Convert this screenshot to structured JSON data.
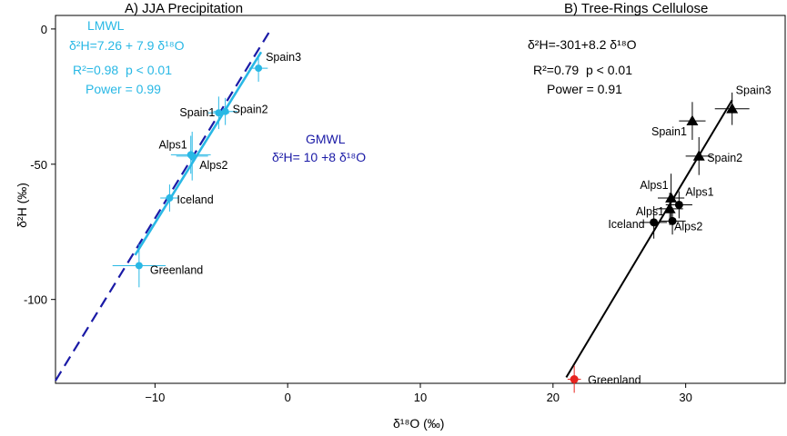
{
  "colors": {
    "lmwl": "#29b8e5",
    "gmwl": "#1a1aa6",
    "tree": "#000000",
    "greenland_tree": "#e8231e"
  },
  "chart_data": {
    "type": "scatter",
    "xlabel": "δ¹⁸O (‰)",
    "ylabel": "δ²H (‰)",
    "xlim": [
      -17.5,
      37.5
    ],
    "ylim": [
      -131,
      5
    ],
    "x_ticks": [
      -10,
      0,
      10,
      20,
      30
    ],
    "y_ticks": [
      0,
      -50,
      -100
    ],
    "x_tick_labels": [
      "−10",
      "0",
      "10",
      "20",
      "30"
    ],
    "y_tick_labels": [
      "0",
      "-50",
      "-100"
    ],
    "panels": [
      {
        "title": "A) JJA Precipitation",
        "lines": [
          {
            "name": "GMWL",
            "equation": "δ²H= 10 +8 δ¹⁸O",
            "intercept": 10,
            "slope": 8,
            "x_range": [
              -17.5,
              -1.3
            ],
            "style": "dashed"
          },
          {
            "name": "LMWL",
            "equation": "δ²H=7.26 + 7.9 δ¹⁸O",
            "intercept": 7.26,
            "slope": 7.9,
            "x_range": [
              -11.5,
              -2.0
            ],
            "style": "solid"
          }
        ],
        "stats": [
          "R²=0.98",
          "p < 0.01",
          "Power = 0.99"
        ],
        "points": [
          {
            "label": "Spain3",
            "x": -2.2,
            "y": -14.5,
            "xerr": 0.7,
            "yerr": 5
          },
          {
            "label": "Spain1",
            "x": -5.2,
            "y": -31,
            "xerr": 0.8,
            "yerr": 6
          },
          {
            "label": "Spain2",
            "x": -4.7,
            "y": -30.5,
            "xerr": 0.9,
            "yerr": 5
          },
          {
            "label": "Alps1",
            "x": -7.3,
            "y": -46.5,
            "xerr": 1.5,
            "yerr": 7
          },
          {
            "label": "Alps2",
            "x": -7.2,
            "y": -47,
            "xerr": 1.2,
            "yerr": 9
          },
          {
            "label": "Iceland",
            "x": -8.9,
            "y": -62.5,
            "xerr": 0.7,
            "yerr": 5
          },
          {
            "label": "Greenland",
            "x": -11.2,
            "y": -87.5,
            "xerr": 2.0,
            "yerr": 8
          }
        ]
      },
      {
        "title": "B) Tree-Rings Cellulose",
        "lines": [
          {
            "name": "Tree-ring regression",
            "equation": "δ²H=-301+8.2 δ¹⁸O",
            "intercept": -301,
            "slope": 8.2,
            "x_range": [
              21.0,
              33.5
            ],
            "style": "solid"
          }
        ],
        "stats": [
          "R²=0.79",
          "p < 0.01",
          "Power = 0.91"
        ],
        "points": [
          {
            "label": "Spain3",
            "x": 33.5,
            "y": -29.5,
            "xerr": 1.3,
            "yerr": 6,
            "marker": "triangle"
          },
          {
            "label": "Spain1",
            "x": 30.5,
            "y": -34,
            "xerr": 1.0,
            "yerr": 7,
            "marker": "triangle"
          },
          {
            "label": "Spain2",
            "x": 31.0,
            "y": -47,
            "xerr": 1.0,
            "yerr": 7,
            "marker": "triangle"
          },
          {
            "label": "Alps1",
            "x": 28.9,
            "y": -62.5,
            "xerr": 1.0,
            "yerr": 9,
            "marker": "triangle"
          },
          {
            "label": "Alps1",
            "x": 28.8,
            "y": -66.5,
            "xerr": 1.0,
            "yerr": 6,
            "marker": "triangle"
          },
          {
            "label": "Alps1",
            "x": 29.5,
            "y": -65,
            "xerr": 1.0,
            "yerr": 5,
            "marker": "circle"
          },
          {
            "label": "Iceland",
            "x": 27.6,
            "y": -71.5,
            "xerr": 1.0,
            "yerr": 6,
            "marker": "circle"
          },
          {
            "label": "Alps2",
            "x": 29.0,
            "y": -71,
            "xerr": 1.0,
            "yerr": 5,
            "marker": "circle"
          },
          {
            "label": "Greenland",
            "x": 21.6,
            "y": -129.5,
            "xerr": 0.5,
            "yerr": 5,
            "marker": "circle",
            "color": "red"
          }
        ]
      }
    ]
  }
}
